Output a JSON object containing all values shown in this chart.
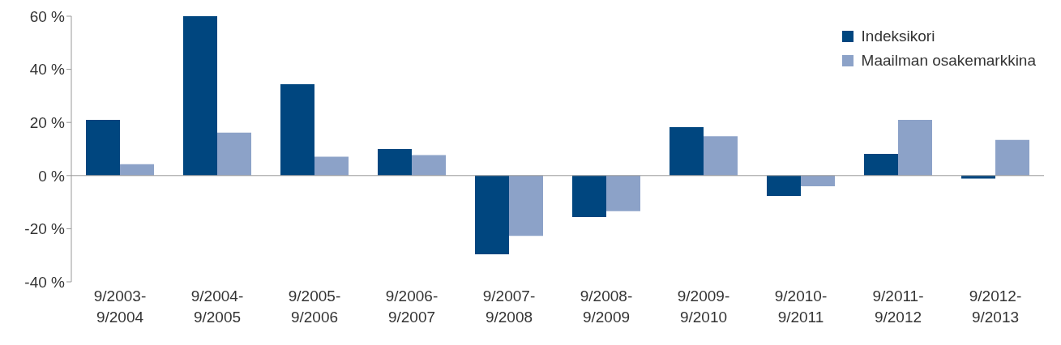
{
  "chart_data": {
    "type": "bar",
    "categories": [
      "9/2003-\n9/2004",
      "9/2004-\n9/2005",
      "9/2005-\n9/2006",
      "9/2006-\n9/2007",
      "9/2007-\n9/2008",
      "9/2008-\n9/2009",
      "9/2009-\n9/2010",
      "9/2010-\n9/2011",
      "9/2011-\n9/2012",
      "9/2012-\n9/2013"
    ],
    "series": [
      {
        "name": "Indeksikori",
        "color": "#00467f",
        "values": [
          21,
          60,
          34.4,
          10,
          -29.6,
          -15.6,
          18.2,
          -7.7,
          8.2,
          -1.1
        ]
      },
      {
        "name": "Maailman osakemarkkina",
        "color": "#8ca2c8",
        "values": [
          4.3,
          16.2,
          7.1,
          7.7,
          -22.7,
          -13.4,
          14.8,
          -4,
          21,
          13.4
        ]
      }
    ],
    "ylim": [
      -40,
      60
    ],
    "yticks": [
      {
        "value": -40,
        "label": "-40 %"
      },
      {
        "value": -20,
        "label": "-20 %"
      },
      {
        "value": 0,
        "label": "0 %"
      },
      {
        "value": 20,
        "label": "20 %"
      },
      {
        "value": 40,
        "label": "40 %"
      },
      {
        "value": 60,
        "label": "60 %"
      }
    ],
    "legend": "top right"
  }
}
